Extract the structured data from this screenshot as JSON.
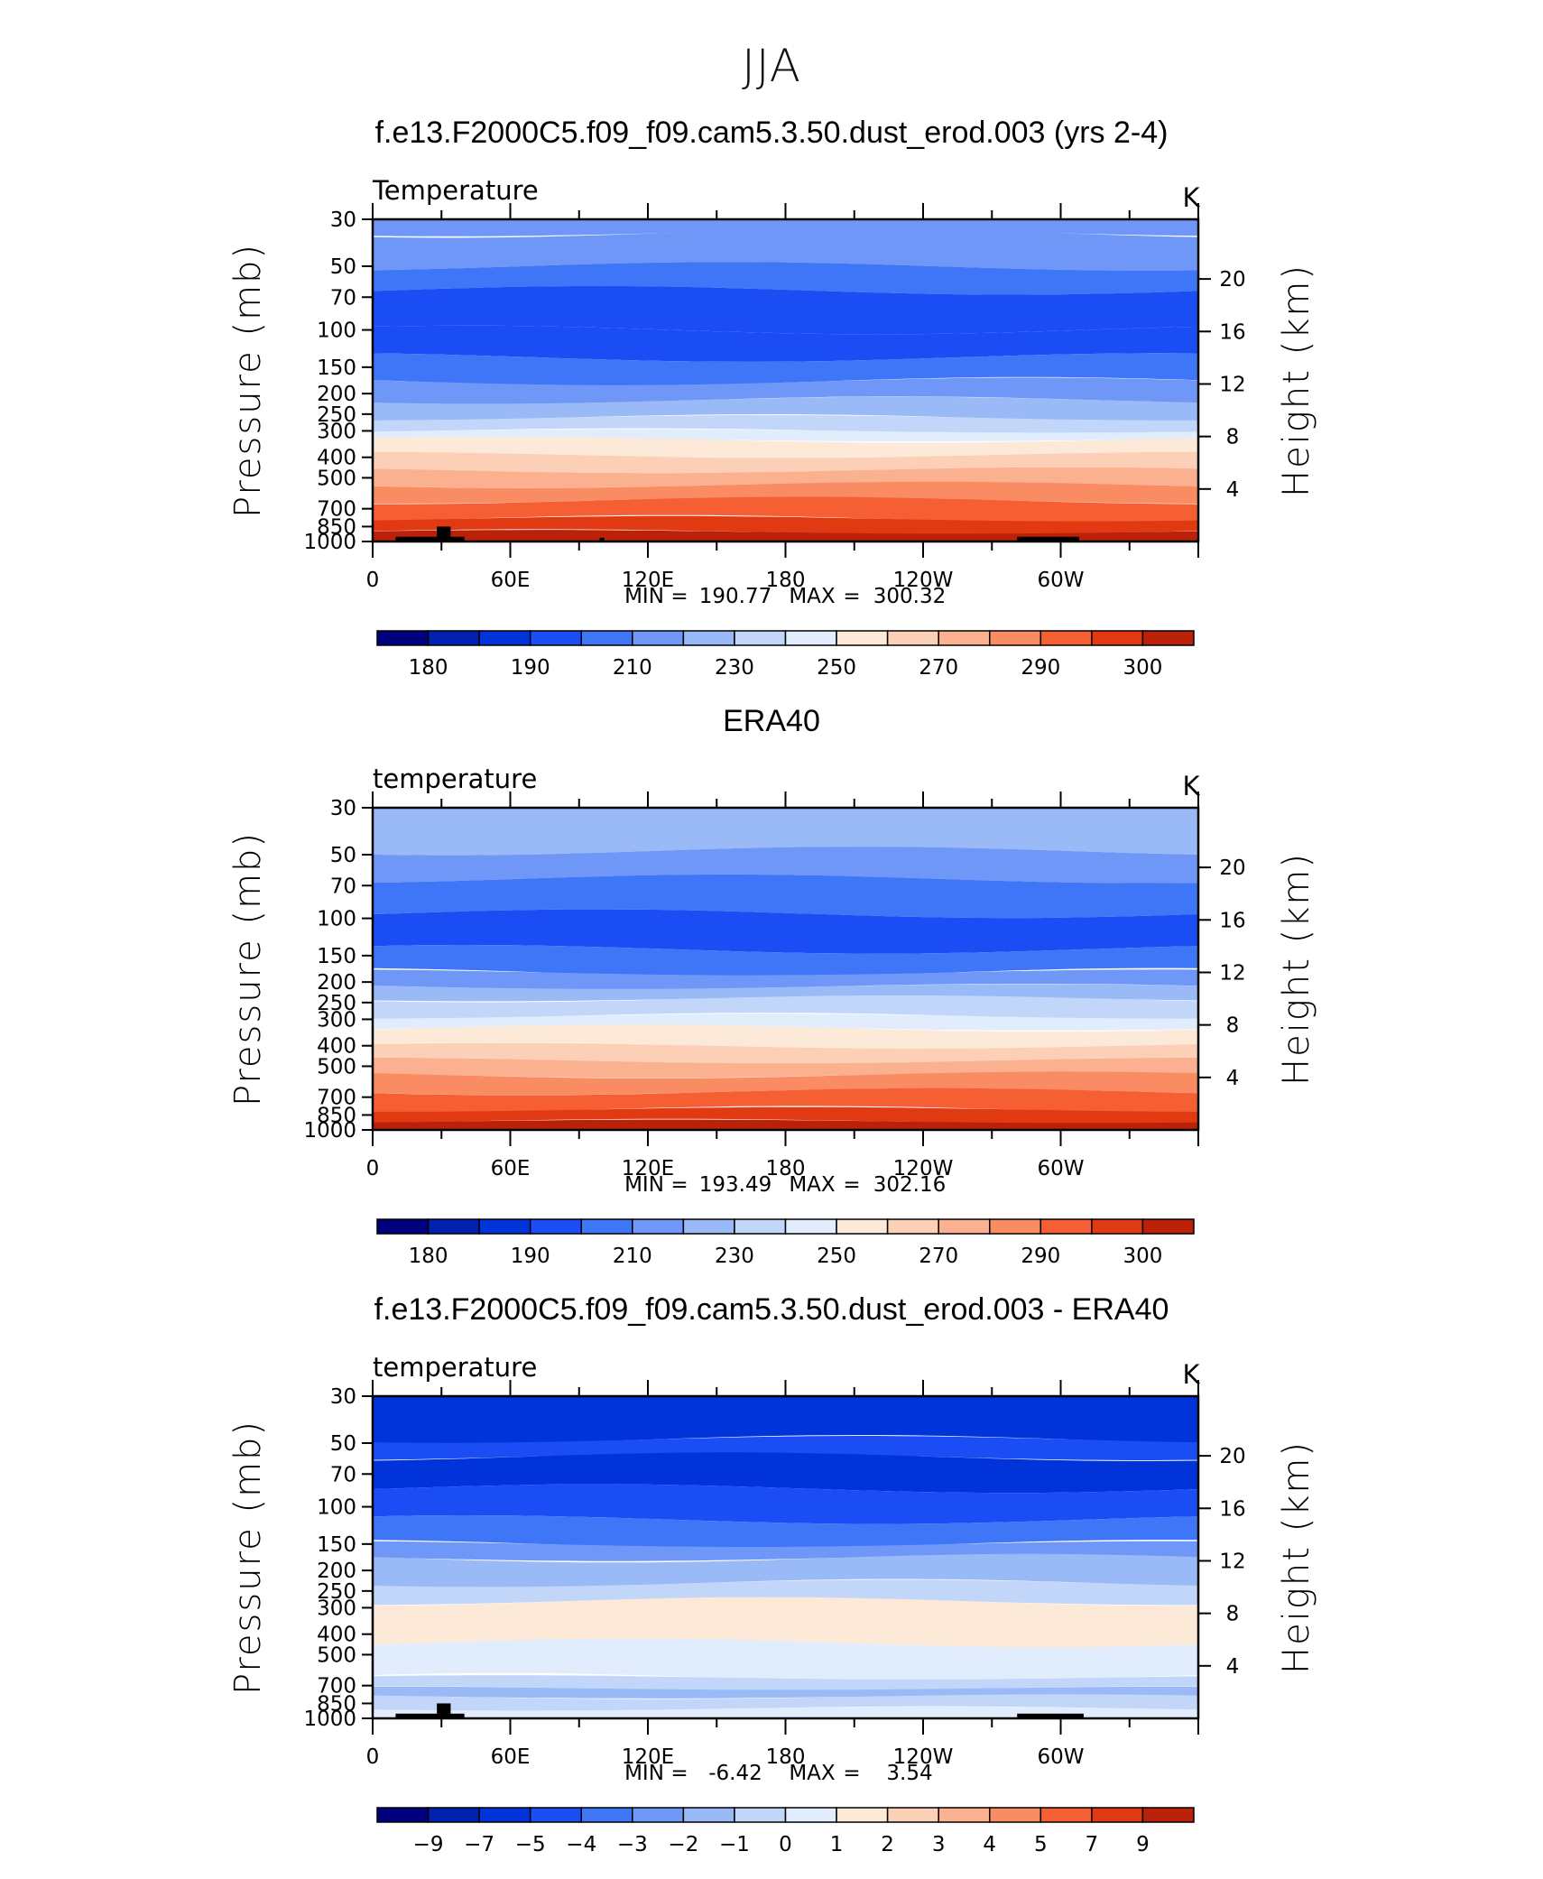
{
  "page": {
    "title": "JJA"
  },
  "common": {
    "y_axis_label": "Pressure (mb)",
    "y2_axis_label": "Height (km)",
    "units": "K",
    "pressure_ticks": [
      "30",
      "50",
      "70",
      "100",
      "150",
      "200",
      "250",
      "300",
      "400",
      "500",
      "700",
      "850",
      "1000"
    ],
    "height_ticks": [
      "20",
      "16",
      "12",
      "8",
      "4"
    ],
    "lon_ticks": [
      "0",
      "60E",
      "120E",
      "180",
      "120W",
      "60W"
    ],
    "min_label": "MIN",
    "max_label": "MAX"
  },
  "colors": {
    "palette": [
      "#00007f",
      "#0020b0",
      "#0033d9",
      "#1a4ef4",
      "#3f75f7",
      "#6f97f7",
      "#9ab9f7",
      "#c2d6f9",
      "#e1ecfc",
      "#fde9d8",
      "#fcd0b7",
      "#fbb08f",
      "#f98c63",
      "#f55f33",
      "#e13a12",
      "#bb2109",
      "#850d00"
    ],
    "land": "#000000"
  },
  "chart_data": [
    {
      "type": "contour",
      "title": "f.e13.F2000C5.f09_f09.cam5.3.50.dust_erod.003 (yrs 2-4)",
      "left_string": "Temperature",
      "right_string": "K",
      "ylabel": "Pressure (mb)",
      "y2label": "Height (km)",
      "min_value": "190.77",
      "max_value": "300.32",
      "colorbar_levels": [
        "180",
        "185",
        "190",
        "200",
        "210",
        "220",
        "230",
        "240",
        "250",
        "260",
        "270",
        "280",
        "290",
        "295",
        "300"
      ],
      "colorbar_labels": [
        "180",
        "190",
        "210",
        "230",
        "250",
        "270",
        "290",
        "300"
      ],
      "bands": [
        {
          "p": 30,
          "c": 5
        },
        {
          "p": 35,
          "c": 5
        },
        {
          "p": 50,
          "c": 4
        },
        {
          "p": 65,
          "c": 3
        },
        {
          "p": 100,
          "c": 3
        },
        {
          "p": 135,
          "c": 4
        },
        {
          "p": 175,
          "c": 5
        },
        {
          "p": 215,
          "c": 6
        },
        {
          "p": 260,
          "c": 7
        },
        {
          "p": 300,
          "c": 8
        },
        {
          "p": 330,
          "c": 9
        },
        {
          "p": 390,
          "c": 10
        },
        {
          "p": 460,
          "c": 11
        },
        {
          "p": 540,
          "c": 12
        },
        {
          "p": 640,
          "c": 13
        },
        {
          "p": 780,
          "c": 14
        },
        {
          "p": 900,
          "c": 15
        }
      ],
      "land": [
        {
          "lon0": 10,
          "lon1": 40,
          "p": 950
        },
        {
          "lon0": 28,
          "lon1": 34,
          "p": 850
        },
        {
          "lon0": 99,
          "lon1": 101,
          "p": 960
        },
        {
          "lon0": 281,
          "lon1": 308,
          "p": 950
        }
      ]
    },
    {
      "type": "contour",
      "title": "ERA40",
      "left_string": "temperature",
      "right_string": "K",
      "ylabel": "Pressure (mb)",
      "y2label": "Height (km)",
      "min_value": "193.49",
      "max_value": "302.16",
      "colorbar_levels": [
        "180",
        "185",
        "190",
        "200",
        "210",
        "220",
        "230",
        "240",
        "250",
        "260",
        "270",
        "280",
        "290",
        "295",
        "300"
      ],
      "colorbar_labels": [
        "180",
        "190",
        "210",
        "230",
        "250",
        "270",
        "290",
        "300"
      ],
      "bands": [
        {
          "p": 30,
          "c": 6
        },
        {
          "p": 48,
          "c": 5
        },
        {
          "p": 65,
          "c": 4
        },
        {
          "p": 95,
          "c": 3
        },
        {
          "p": 140,
          "c": 4
        },
        {
          "p": 180,
          "c": 5
        },
        {
          "p": 210,
          "c": 6
        },
        {
          "p": 240,
          "c": 7
        },
        {
          "p": 290,
          "c": 8
        },
        {
          "p": 330,
          "c": 9
        },
        {
          "p": 400,
          "c": 10
        },
        {
          "p": 470,
          "c": 11
        },
        {
          "p": 550,
          "c": 12
        },
        {
          "p": 660,
          "c": 13
        },
        {
          "p": 800,
          "c": 14
        },
        {
          "p": 910,
          "c": 15
        }
      ],
      "land": []
    },
    {
      "type": "contour",
      "title": "f.e13.F2000C5.f09_f09.cam5.3.50.dust_erod.003 - ERA40",
      "left_string": "temperature",
      "right_string": "K",
      "ylabel": "Pressure (mb)",
      "y2label": "Height (km)",
      "min_value": "-6.42",
      "max_value": "3.54",
      "colorbar_levels": [
        "-9",
        "-7",
        "-5",
        "-4",
        "-3",
        "-2",
        "-1",
        "0",
        "1",
        "2",
        "3",
        "4",
        "5",
        "7",
        "9"
      ],
      "colorbar_labels": [
        "−9",
        "−7",
        "−5",
        "−4",
        "−3",
        "−2",
        "−1",
        "0",
        "1",
        "2",
        "3",
        "4",
        "5",
        "7",
        "9"
      ],
      "bands": [
        {
          "p": 30,
          "c": 2
        },
        {
          "p": 48,
          "c": 3
        },
        {
          "p": 58,
          "c": 2
        },
        {
          "p": 82,
          "c": 3
        },
        {
          "p": 115,
          "c": 4
        },
        {
          "p": 150,
          "c": 5
        },
        {
          "p": 175,
          "c": 6
        },
        {
          "p": 230,
          "c": 7
        },
        {
          "p": 280,
          "c": 9
        },
        {
          "p": 440,
          "c": 8
        },
        {
          "p": 640,
          "c": 7
        },
        {
          "p": 720,
          "c": 6
        },
        {
          "p": 790,
          "c": 7
        },
        {
          "p": 900,
          "c": 8
        }
      ],
      "land": [
        {
          "lon0": 10,
          "lon1": 40,
          "p": 950
        },
        {
          "lon0": 28,
          "lon1": 34,
          "p": 850
        },
        {
          "lon0": 281,
          "lon1": 310,
          "p": 950
        }
      ]
    }
  ]
}
